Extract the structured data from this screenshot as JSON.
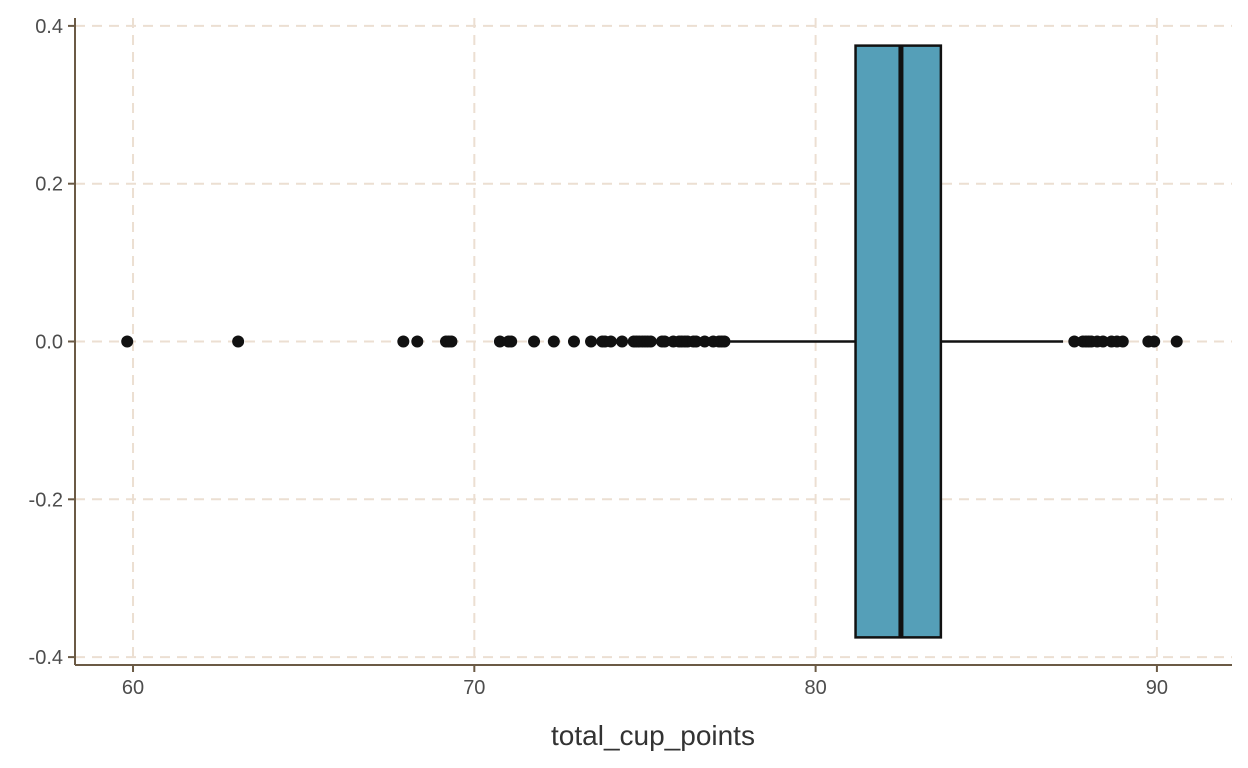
{
  "chart_data": {
    "type": "boxplot",
    "xlabel": "total_cup_points",
    "ylabel": "",
    "xlim": [
      58.3,
      92.2
    ],
    "ylim": [
      -0.41,
      0.41
    ],
    "x_ticks": [
      60,
      70,
      80,
      90
    ],
    "x_tick_labels": [
      "60",
      "70",
      "80",
      "90"
    ],
    "y_ticks": [
      0.4,
      0.2,
      0.0,
      -0.2,
      -0.4
    ],
    "y_tick_labels": [
      "0.4",
      "0.2",
      "0.0",
      "-0.2",
      "-0.4"
    ],
    "grid": true,
    "box_color": "#559fb8",
    "box": {
      "q1": 81.17,
      "median": 82.5,
      "q3": 83.67,
      "whisker_low": 77.5,
      "whisker_high": 87.25,
      "y_center": 0.0,
      "half_height": 0.375
    },
    "outliers": [
      59.83,
      63.08,
      67.92,
      68.33,
      69.17,
      69.25,
      69.33,
      70.75,
      71.0,
      71.08,
      71.75,
      72.33,
      72.92,
      73.42,
      73.75,
      73.83,
      74.0,
      74.33,
      74.67,
      74.75,
      74.83,
      74.92,
      75.0,
      75.08,
      75.17,
      75.5,
      75.58,
      75.83,
      76.0,
      76.08,
      76.17,
      76.25,
      76.42,
      76.5,
      76.75,
      77.0,
      77.17,
      77.25,
      77.33,
      87.58,
      87.83,
      87.92,
      88.0,
      88.08,
      88.25,
      88.42,
      88.67,
      88.83,
      89.0,
      89.75,
      89.92,
      90.58
    ]
  }
}
